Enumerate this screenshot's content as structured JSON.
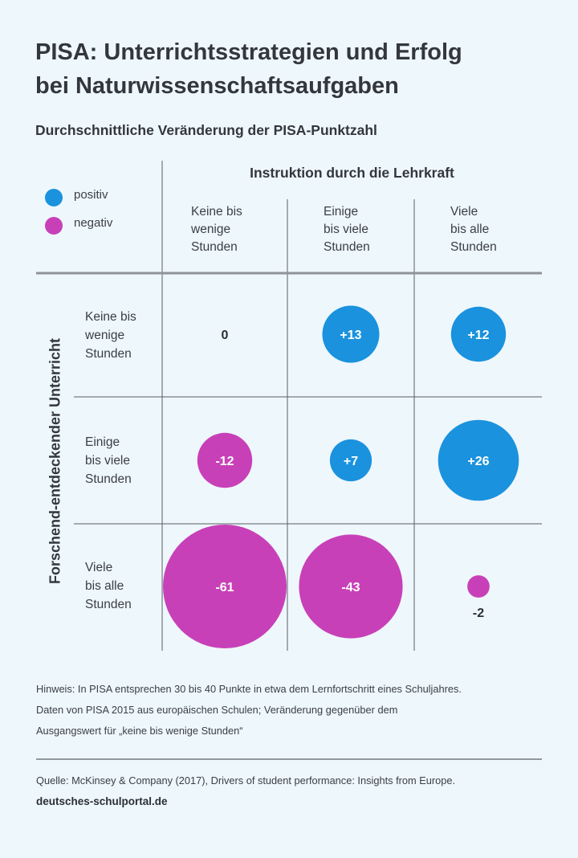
{
  "title": "PISA: Unterrichtsstrategien und Erfolg\nbei Naturwissenschaftsaufgaben",
  "subtitle": "Durchschnittliche Veränderung der PISA-Punktzahl",
  "legend": {
    "positive": {
      "label": "positiv",
      "color": "#1a92de"
    },
    "negative": {
      "label": "negativ",
      "color": "#c840b8"
    }
  },
  "chart_data": {
    "type": "bubble-matrix",
    "title": "PISA: Unterrichtsstrategien und Erfolg bei Naturwissenschaftsaufgaben",
    "subtitle": "Durchschnittliche Veränderung der PISA-Punktzahl",
    "column_axis_title": "Instruktion durch die Lehrkraft",
    "row_axis_title": "Forschend-entdeckender Unterricht",
    "columns": [
      "Keine bis\nwenige\nStunden",
      "Einige\nbis viele\nStunden",
      "Viele\nbis alle\nStunden"
    ],
    "rows": [
      "Keine bis\nwenige\nStunden",
      "Einige\nbis viele\nStunden",
      "Viele\nbis alle\nStunden"
    ],
    "values": [
      [
        0,
        13,
        12
      ],
      [
        -12,
        7,
        26
      ],
      [
        -61,
        -43,
        -2
      ]
    ],
    "labels": [
      [
        "0",
        "+13",
        "+12"
      ],
      [
        "-12",
        "+7",
        "+26"
      ],
      [
        "-61",
        "-43",
        "-2"
      ]
    ],
    "legend": [
      "positiv",
      "negativ"
    ],
    "size_encoding": "bubble area proportional to |value|"
  },
  "notes": [
    "Hinweis: In PISA entsprechen 30 bis 40 Punkte in etwa dem Lernfortschritt eines Schuljahres.",
    "Daten von PISA 2015 aus europäischen Schulen; Veränderung gegenüber dem",
    "Ausgangswert für „keine bis wenige Stunden“"
  ],
  "source": "Quelle: McKinsey & Company (2017), Drivers of student performance: Insights from Europe.",
  "site": "deutsches-schulportal.de"
}
